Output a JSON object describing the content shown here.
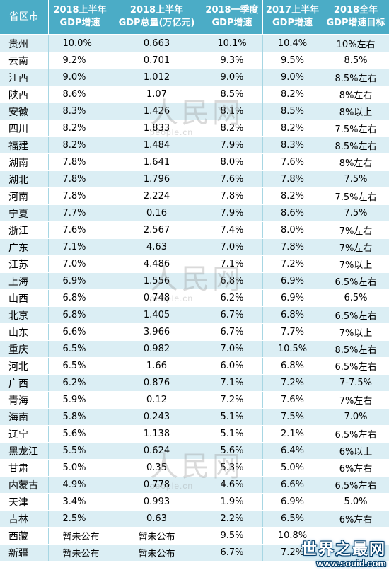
{
  "headers": [
    "省区市",
    "2018上半年\nGDP增速",
    "2018上半年\nGDP总量(万亿元)",
    "2018一季度\nGDP增速",
    "2017上半年\nGDP增速",
    "2018全年\nGDP增速目标"
  ],
  "rows": [
    [
      "贵州",
      "10.0%",
      "0.663",
      "10.1%",
      "10.4%",
      "10%左右"
    ],
    [
      "云南",
      "9.2%",
      "0.701",
      "9.3%",
      "9.5%",
      "8.5%"
    ],
    [
      "江西",
      "9.0%",
      "1.012",
      "9.0%",
      "9.0%",
      "8.5%左右"
    ],
    [
      "陕西",
      "8.6%",
      "1.07",
      "8.5%",
      "8.2%",
      "8%左右"
    ],
    [
      "安徽",
      "8.3%",
      "1.426",
      "8.1%",
      "8.5%",
      "8%以上"
    ],
    [
      "四川",
      "8.2%",
      "1.833",
      "8.2%",
      "8.2%",
      "7.5%左右"
    ],
    [
      "福建",
      "8.2%",
      "1.484",
      "7.9%",
      "8.3%",
      "8.5%左右"
    ],
    [
      "湖南",
      "7.8%",
      "1.641",
      "8.0%",
      "7.6%",
      "8%左右"
    ],
    [
      "湖北",
      "7.8%",
      "1.796",
      "7.6%",
      "7.8%",
      "7.5%"
    ],
    [
      "河南",
      "7.8%",
      "2.224",
      "7.8%",
      "8.2%",
      "7.5%左右"
    ],
    [
      "宁夏",
      "7.7%",
      "0.16",
      "7.9%",
      "8.6%",
      "7.5%"
    ],
    [
      "浙江",
      "7.6%",
      "2.567",
      "7.4%",
      "8.0%",
      "7%左右"
    ],
    [
      "广东",
      "7.1%",
      "4.63",
      "7.0%",
      "7.8%",
      "7%左右"
    ],
    [
      "江苏",
      "7.0%",
      "4.486",
      "7.1%",
      "7.2%",
      "7%以上"
    ],
    [
      "上海",
      "6.9%",
      "1.556",
      "6.8%",
      "6.9%",
      "6.5%左右"
    ],
    [
      "山西",
      "6.8%",
      "0.748",
      "6.2%",
      "6.9%",
      "6.5%"
    ],
    [
      "北京",
      "6.8%",
      "1.405",
      "6.7%",
      "6.8%",
      "6.5%左右"
    ],
    [
      "山东",
      "6.6%",
      "3.966",
      "6.7%",
      "7.7%",
      "7%以上"
    ],
    [
      "重庆",
      "6.5%",
      "0.982",
      "7.0%",
      "10.5%",
      "8.5%左右"
    ],
    [
      "河北",
      "6.5%",
      "1.66",
      "6.0%",
      "6.8%",
      "6.5%左右"
    ],
    [
      "广西",
      "6.2%",
      "0.876",
      "7.1%",
      "7.2%",
      "7-7.5%"
    ],
    [
      "青海",
      "5.9%",
      "0.12",
      "7.2%",
      "7.6%",
      "7%左右"
    ],
    [
      "海南",
      "5.8%",
      "0.243",
      "5.1%",
      "7.5%",
      "7.0%"
    ],
    [
      "辽宁",
      "5.6%",
      "1.138",
      "5.1%",
      "2.1%",
      "6.5%左右"
    ],
    [
      "黑龙江",
      "5.5%",
      "0.624",
      "5.6%",
      "6.4%",
      "6%以上"
    ],
    [
      "甘肃",
      "5.0%",
      "0.35",
      "5.3%",
      "5.0%",
      "6%左右"
    ],
    [
      "内蒙古",
      "4.9%",
      "0.778",
      "4.6%",
      "6.6%",
      "6.5%左右"
    ],
    [
      "天津",
      "3.4%",
      "0.993",
      "1.9%",
      "6.9%",
      "5.0%"
    ],
    [
      "吉林",
      "2.5%",
      "0.63",
      "2.2%",
      "6.5%",
      "6%左右"
    ],
    [
      "西藏",
      "暂未公布",
      "暂未公布",
      "9.5%",
      "10.8%",
      ""
    ],
    [
      "新疆",
      "暂未公布",
      "暂未公布",
      "6.7%",
      "7.2%",
      ""
    ]
  ],
  "watermark": {
    "text": "人民网",
    "subtext": "people.cn"
  },
  "brand": {
    "name": "世界之最网",
    "url": "www.souid.com"
  },
  "colors": {
    "header_bg": "#4bacc6",
    "row_band": "#dbeef4"
  }
}
